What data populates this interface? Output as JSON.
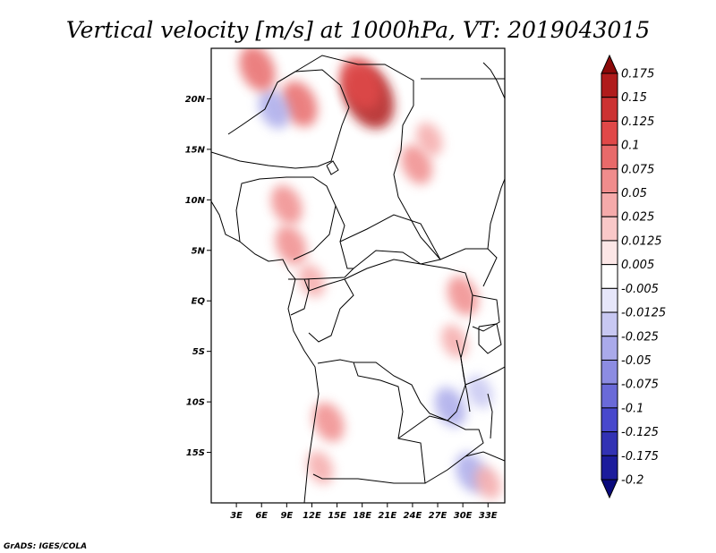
{
  "chart_data": {
    "type": "heatmap",
    "title": "Vertical velocity [m/s] at 1000hPa, VT: 2019043015",
    "variable": "Vertical velocity",
    "units": "m/s",
    "level": "1000hPa",
    "valid_time": "2019043015",
    "x_ticks": [
      "3E",
      "6E",
      "9E",
      "12E",
      "15E",
      "18E",
      "21E",
      "24E",
      "27E",
      "30E",
      "33E"
    ],
    "x_tick_values": [
      3,
      6,
      9,
      12,
      15,
      18,
      21,
      24,
      27,
      30,
      33
    ],
    "y_ticks": [
      "20N",
      "15N",
      "10N",
      "5N",
      "EQ",
      "5S",
      "10S",
      "15S"
    ],
    "y_tick_values": [
      20,
      15,
      10,
      5,
      0,
      -5,
      -10,
      -15
    ],
    "xlim": [
      0,
      35
    ],
    "ylim": [
      -20,
      25
    ],
    "colorbar": {
      "labels": [
        "0.175",
        "0.15",
        "0.125",
        "0.1",
        "0.075",
        "0.05",
        "0.025",
        "0.0125",
        "0.005",
        "-0.005",
        "-0.0125",
        "-0.025",
        "-0.05",
        "-0.075",
        "-0.1",
        "-0.125",
        "-0.175",
        "-0.2"
      ],
      "colors": [
        "#8c0a0a",
        "#b01c1c",
        "#cc3232",
        "#e04848",
        "#e86a6a",
        "#f08c8c",
        "#f5aaaa",
        "#f9c8c8",
        "#fce6e6",
        "#ffffff",
        "#e6e6fa",
        "#c8c8f2",
        "#aaaaea",
        "#8c8ce2",
        "#6a6ad8",
        "#4848cc",
        "#3232b4",
        "#1c1c9c",
        "#0a0a7c"
      ]
    },
    "features": [
      {
        "type": "positive",
        "lon": 18.8,
        "lat": 20.2,
        "value": 0.15
      },
      {
        "type": "positive",
        "lon": 17.8,
        "lat": 21.5,
        "value": 0.1
      },
      {
        "type": "positive",
        "lon": 10.5,
        "lat": 19.5,
        "value": 0.075
      },
      {
        "type": "negative",
        "lon": 7.5,
        "lat": 19.0,
        "value": -0.05
      },
      {
        "type": "positive",
        "lon": 5.5,
        "lat": 23.0,
        "value": 0.075
      },
      {
        "type": "positive",
        "lon": 24.5,
        "lat": 13.5,
        "value": 0.05
      },
      {
        "type": "positive",
        "lon": 26.0,
        "lat": 16.0,
        "value": 0.025
      },
      {
        "type": "positive",
        "lon": 9.0,
        "lat": 9.5,
        "value": 0.05
      },
      {
        "type": "positive",
        "lon": 9.5,
        "lat": 5.5,
        "value": 0.05
      },
      {
        "type": "positive",
        "lon": 12.0,
        "lat": 2.0,
        "value": 0.025
      },
      {
        "type": "positive",
        "lon": 30.0,
        "lat": 0.5,
        "value": 0.05
      },
      {
        "type": "positive",
        "lon": 29.0,
        "lat": -4.0,
        "value": 0.025
      },
      {
        "type": "negative",
        "lon": 28.5,
        "lat": -10.5,
        "value": -0.05
      },
      {
        "type": "negative",
        "lon": 32.0,
        "lat": -9.0,
        "value": -0.025
      },
      {
        "type": "positive",
        "lon": 14.0,
        "lat": -12.0,
        "value": 0.05
      },
      {
        "type": "positive",
        "lon": 13.0,
        "lat": -16.5,
        "value": 0.025
      },
      {
        "type": "negative",
        "lon": 31.0,
        "lat": -17.0,
        "value": -0.05
      },
      {
        "type": "positive",
        "lon": 33.0,
        "lat": -18.0,
        "value": 0.025
      }
    ]
  },
  "footer": "GrADS: IGES/COLA"
}
